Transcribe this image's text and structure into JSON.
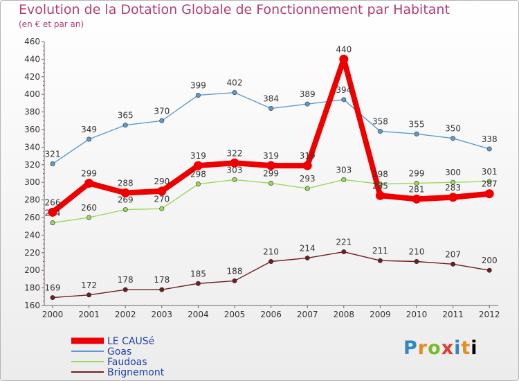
{
  "title": "Evolution de la Dotation Globale de Fonctionnement par Habitant",
  "subtitle": "(en € et par an)",
  "logo": "Proxiti",
  "chart_data": {
    "type": "line",
    "x": [
      "2000",
      "2001",
      "2002",
      "2003",
      "2004",
      "2005",
      "2006",
      "2007",
      "2008",
      "2009",
      "2010",
      "2011",
      "2012"
    ],
    "yticks": [
      160,
      180,
      200,
      220,
      240,
      260,
      280,
      300,
      320,
      340,
      360,
      380,
      400,
      420,
      440,
      460
    ],
    "ylim": [
      160,
      460
    ],
    "grid": false,
    "legend_position": "bottom-left",
    "series": [
      {
        "name": "Goas",
        "color": "#5b9bd0",
        "values": [
          321,
          349,
          365,
          370,
          399,
          402,
          384,
          389,
          394,
          358,
          355,
          350,
          338
        ]
      },
      {
        "name": "Faudoas",
        "color": "#9ad85a",
        "values": [
          254,
          260,
          269,
          270,
          298,
          303,
          299,
          293,
          303,
          298,
          299,
          300,
          301
        ]
      },
      {
        "name": "Brignemont",
        "color": "#6e1e1e",
        "values": [
          169,
          172,
          178,
          178,
          185,
          188,
          210,
          214,
          221,
          211,
          210,
          207,
          200
        ]
      },
      {
        "name": "LE CAUSé",
        "color": "#ee0000",
        "values": [
          266,
          299,
          288,
          290,
          319,
          322,
          319,
          319,
          440,
          285,
          281,
          283,
          287
        ]
      }
    ]
  }
}
